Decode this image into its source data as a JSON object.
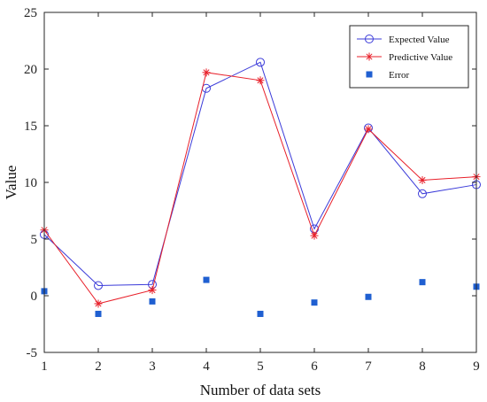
{
  "chart_data": {
    "type": "line",
    "title": "",
    "xlabel": "Number of data sets",
    "ylabel": "Value",
    "x": [
      1,
      2,
      3,
      4,
      5,
      6,
      7,
      8,
      9
    ],
    "xlim": [
      1,
      9
    ],
    "ylim": [
      -5,
      25
    ],
    "xticks": [
      "1",
      "2",
      "3",
      "4",
      "5",
      "6",
      "7",
      "8",
      "9"
    ],
    "yticks": [
      "-5",
      "0",
      "5",
      "10",
      "15",
      "20",
      "25"
    ],
    "grid": false,
    "legend_position": "top-right",
    "series": [
      {
        "name": "Expected Value",
        "type": "line",
        "marker": "circle",
        "color": "#3b3bd9",
        "values": [
          5.4,
          0.9,
          1.0,
          18.3,
          20.6,
          5.9,
          14.8,
          9.0,
          9.8
        ]
      },
      {
        "name": "Predictive Value",
        "type": "line",
        "marker": "asterisk",
        "color": "#e8202a",
        "values": [
          5.8,
          -0.7,
          0.5,
          19.7,
          19.0,
          5.3,
          14.7,
          10.2,
          10.5
        ]
      },
      {
        "name": "Error",
        "type": "scatter",
        "marker": "square",
        "color": "#1f5fd1",
        "values": [
          0.4,
          -1.6,
          -0.5,
          1.4,
          -1.6,
          -0.6,
          -0.1,
          1.2,
          0.8
        ]
      }
    ]
  }
}
